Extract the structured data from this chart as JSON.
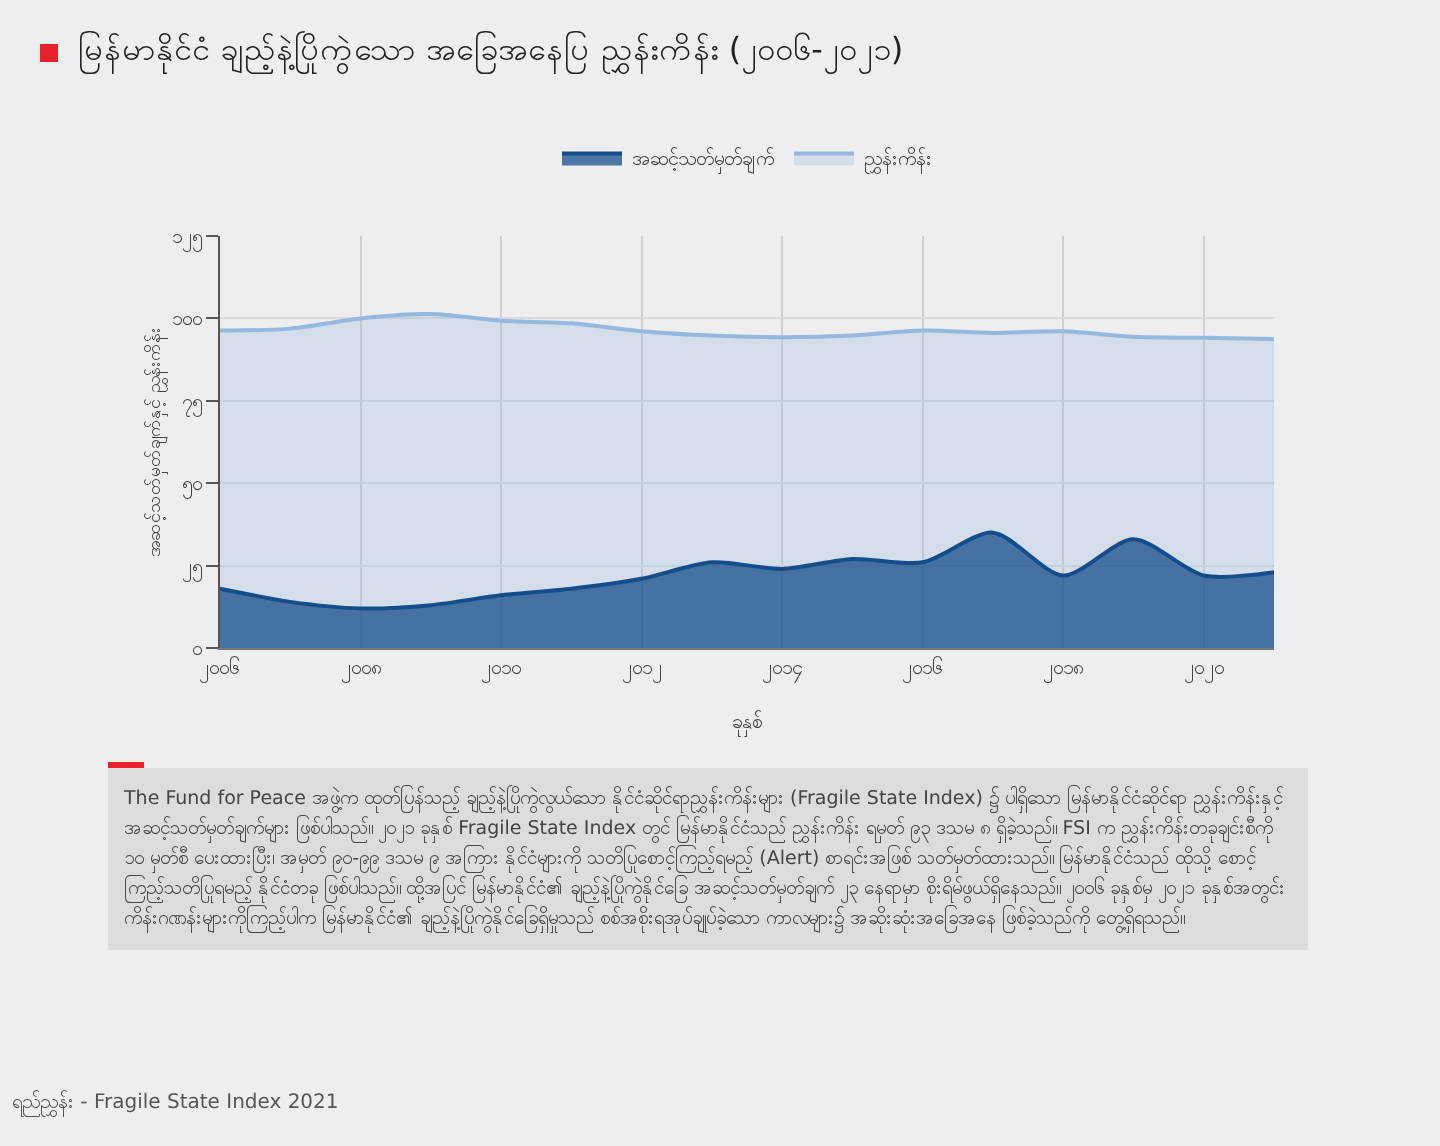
{
  "chart_data": {
    "type": "area",
    "title": "မြန်မာနိုင်ငံ ချည့်နဲ့ပြိုကွဲသော အခြေအနေပြ ညွှန်းကိန်း (၂၀၀၆-၂၀၂၁)",
    "xlabel": "ခုနှစ်",
    "ylabel": "အဆင့်သတ်မှတ်ချက်နှင့် ညွှန်းကိန်း",
    "x": [
      2006,
      2007,
      2008,
      2009,
      2010,
      2011,
      2012,
      2013,
      2014,
      2015,
      2016,
      2017,
      2018,
      2019,
      2020,
      2021
    ],
    "series": [
      {
        "name": "အဆင့်သတ်မှတ်ချက်",
        "color": "#154d8a",
        "values": [
          18,
          14,
          12,
          13,
          16,
          18,
          21,
          26,
          24,
          27,
          26,
          35,
          22,
          33,
          22,
          23
        ]
      },
      {
        "name": "ညွှန်းကိန်း",
        "color": "#94b8de",
        "values": [
          96.3,
          96.9,
          100.0,
          101.3,
          99.3,
          98.5,
          96.1,
          94.8,
          94.3,
          94.8,
          96.3,
          95.6,
          96.1,
          94.4,
          94.1,
          93.7
        ]
      }
    ],
    "xlim": [
      2006,
      2021
    ],
    "xticks": [
      {
        "value": 2006,
        "label": "၂၀၀၆"
      },
      {
        "value": 2008,
        "label": "၂၀၀၈"
      },
      {
        "value": 2010,
        "label": "၂၀၁၀"
      },
      {
        "value": 2012,
        "label": "၂၀၁၂"
      },
      {
        "value": 2014,
        "label": "၂၀၁၄"
      },
      {
        "value": 2016,
        "label": "၂၀၁၆"
      },
      {
        "value": 2018,
        "label": "၂၀၁၈"
      },
      {
        "value": 2020,
        "label": "၂၀၂၀"
      }
    ],
    "ylim": [
      0,
      125
    ],
    "yticks": [
      {
        "value": 0,
        "label": "၀"
      },
      {
        "value": 25,
        "label": "၂၅"
      },
      {
        "value": 50,
        "label": "၅၀"
      },
      {
        "value": 75,
        "label": "၇၅"
      },
      {
        "value": 100,
        "label": "၁၀၀"
      },
      {
        "value": 125,
        "label": "၁၂၅"
      }
    ],
    "grid": true,
    "legend": "top",
    "marker": "none",
    "line_style": "solid",
    "annotations": [
      "The Fund for Peace အဖွဲ့က ထုတ်ပြန်သည့် ချည့်နဲ့ပြိုကွဲလွယ်သော နိုင်ငံဆိုင်ရာညွှန်းကိန်းများ (Fragile State Index) ၌ ပါရှိသော မြန်မာနိုင်ငံဆိုင်ရာ ညွှန်းကိန်းနှင့် အဆင့်သတ်မှတ်ချက်များ ဖြစ်ပါသည်။ ၂၀၂၁ ခုနှစ် Fragile State Index တွင် မြန်မာနိုင်ငံသည် ညွှန်းကိန်း ရမှတ် ၉၃ ဒသမ ၈ ရှိခဲ့သည်။ FSI က ညွှန်းကိန်းတခုချင်းစီကို ၁၀ မှတ်စီ ပေးထားပြီး၊ အမှတ် ၉၀-၉၉ ဒသမ ၉ အကြား နိုင်ငံများကို သတိပြုစောင့်ကြည့်ရမည့် (Alert) စာရင်းအဖြစ် သတ်မှတ်ထားသည်။ မြန်မာနိုင်ငံသည် ထိုသို့ စောင့်ကြည့်သတိပြုရမည့် နိုင်ငံတခု ဖြစ်ပါသည်။ ထို့အပြင် မြန်မာနိုင်ငံ၏ ချည့်နဲ့ပြိုကွဲနိုင်ခြေ အဆင့်သတ်မှတ်ချက် ၂၃ နေရာမှာ စိုးရိမ်ဖွယ်ရှိနေသည်။ ၂၀၀၆ ခုနှစ်မှ ၂၀၂၁ ခုနှစ်အတွင်း ကိန်းဂဏန်းများကိုကြည့်ပါက မြန်မာနိုင်ငံ၏ ချည့်နဲ့ပြိုကွဲနိုင်ခြေရှိမှုသည် စစ်အစိုးရအုပ်ချုပ်ခဲ့သော ကာလများ၌ အဆိုးဆုံးအခြေအနေ ဖြစ်ခဲ့သည်ကို တွေ့ရှိရသည်။",
      "ရည်ညွှန်း - Fragile State Index 2021"
    ]
  }
}
